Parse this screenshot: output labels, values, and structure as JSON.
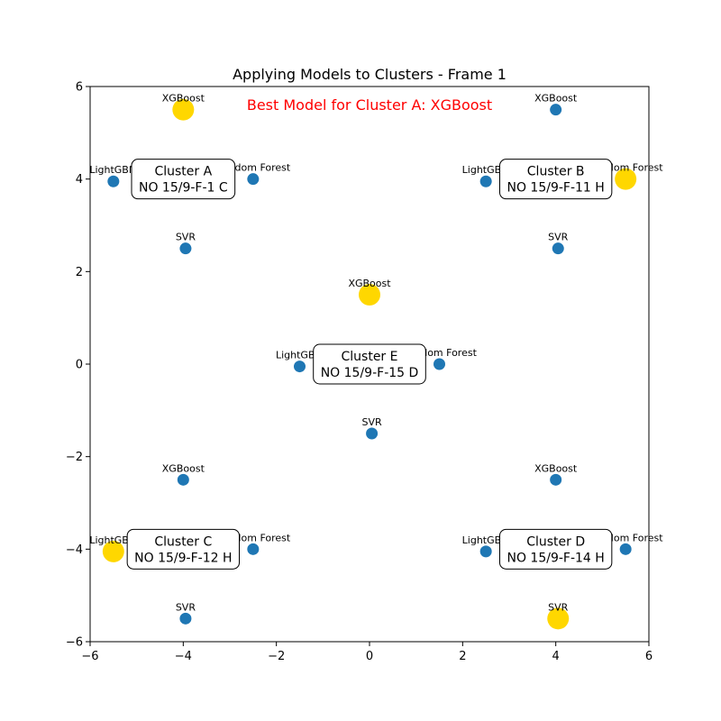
{
  "chart_data": {
    "type": "scatter",
    "title": "Applying Models to Clusters - Frame 1",
    "annotation": "Best Model for Cluster A: XGBoost",
    "xlim": [
      -6,
      6
    ],
    "ylim": [
      -6,
      6
    ],
    "xticks": [
      -6,
      -4,
      -2,
      0,
      2,
      4,
      6
    ],
    "yticks": [
      -6,
      -4,
      -2,
      0,
      2,
      4,
      6
    ],
    "xtick_labels": [
      "−6",
      "−4",
      "−2",
      "0",
      "2",
      "4",
      "6"
    ],
    "ytick_labels": [
      "−6",
      "−4",
      "−2",
      "0",
      "2",
      "4",
      "6"
    ],
    "grid": false,
    "colors": {
      "default": "#1f77b4",
      "best": "#ffd700",
      "annotation": "#ff0000"
    },
    "clusters": [
      {
        "name": "Cluster A",
        "well": "NO 15/9-F-1 C",
        "x": -4.0,
        "y": 4.0
      },
      {
        "name": "Cluster B",
        "well": "NO 15/9-F-11 H",
        "x": 4.0,
        "y": 4.0
      },
      {
        "name": "Cluster C",
        "well": "NO 15/9-F-12 H",
        "x": -4.0,
        "y": -4.0
      },
      {
        "name": "Cluster D",
        "well": "NO 15/9-F-14 H",
        "x": 4.0,
        "y": -4.0
      },
      {
        "name": "Cluster E",
        "well": "NO 15/9-F-15 D",
        "x": 0.0,
        "y": 0.0
      }
    ],
    "points": [
      {
        "model": "XGBoost",
        "x": -4.0,
        "y": 5.5,
        "best": true
      },
      {
        "model": "LightGBM",
        "x": -5.5,
        "y": 3.95,
        "best": false
      },
      {
        "model": "Random Forest",
        "x": -2.5,
        "y": 4.0,
        "best": false
      },
      {
        "model": "SVR",
        "x": -3.95,
        "y": 2.5,
        "best": false
      },
      {
        "model": "XGBoost",
        "x": 4.0,
        "y": 5.5,
        "best": false
      },
      {
        "model": "LightGBM",
        "x": 2.5,
        "y": 3.95,
        "best": false
      },
      {
        "model": "Random Forest",
        "x": 5.5,
        "y": 4.0,
        "best": true
      },
      {
        "model": "SVR",
        "x": 4.05,
        "y": 2.5,
        "best": false
      },
      {
        "model": "XGBoost",
        "x": -4.0,
        "y": -2.5,
        "best": false
      },
      {
        "model": "LightGBM",
        "x": -5.5,
        "y": -4.05,
        "best": true
      },
      {
        "model": "Random Forest",
        "x": -2.5,
        "y": -4.0,
        "best": false
      },
      {
        "model": "SVR",
        "x": -3.95,
        "y": -5.5,
        "best": false
      },
      {
        "model": "XGBoost",
        "x": 4.0,
        "y": -2.5,
        "best": false
      },
      {
        "model": "LightGBM",
        "x": 2.5,
        "y": -4.05,
        "best": false
      },
      {
        "model": "Random Forest",
        "x": 5.5,
        "y": -4.0,
        "best": false
      },
      {
        "model": "SVR",
        "x": 4.05,
        "y": -5.5,
        "best": true
      },
      {
        "model": "XGBoost",
        "x": 0.0,
        "y": 1.5,
        "best": true
      },
      {
        "model": "LightGBM",
        "x": -1.5,
        "y": -0.05,
        "best": false
      },
      {
        "model": "Random Forest",
        "x": 1.5,
        "y": 0.0,
        "best": false
      },
      {
        "model": "SVR",
        "x": 0.05,
        "y": -1.5,
        "best": false
      }
    ]
  }
}
